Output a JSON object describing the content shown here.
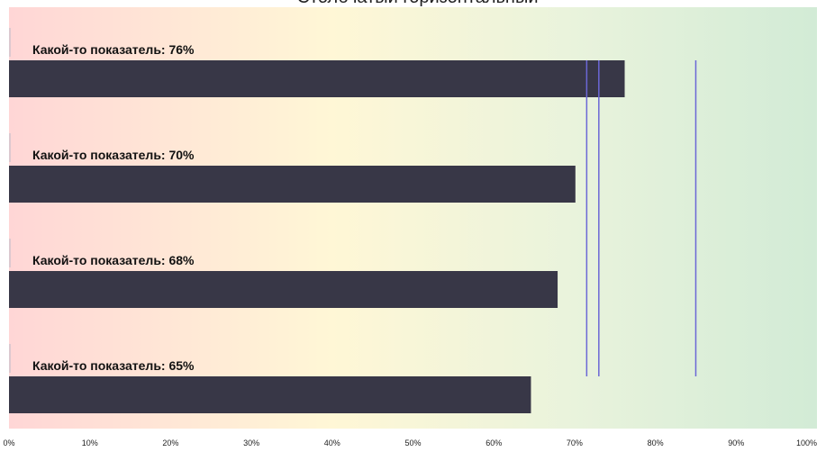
{
  "chart_data": {
    "type": "bar",
    "orientation": "horizontal",
    "title": "Столбчатый горизонтальный",
    "xlim": [
      0,
      100
    ],
    "x_ticks": [
      "0%",
      "10%",
      "20%",
      "30%",
      "40%",
      "50%",
      "60%",
      "70%",
      "80%",
      "90%",
      "100%"
    ],
    "categories": [
      "Какой-то показатель: 76%",
      "Какой-то показатель: 70%",
      "Какой-то показатель: 68%",
      "Какой-то показатель: 65%"
    ],
    "values": [
      76.2,
      70.1,
      67.9,
      64.6
    ],
    "reference_lines": [
      71.5,
      73,
      85
    ],
    "colors": {
      "bar": "#383747",
      "reference_line": "#6b67d6",
      "background_gradient": [
        "#ffd6d6",
        "#fff7d6",
        "#e9f3dc",
        "#d2ebd6"
      ]
    },
    "grid": false,
    "legend": "none"
  }
}
